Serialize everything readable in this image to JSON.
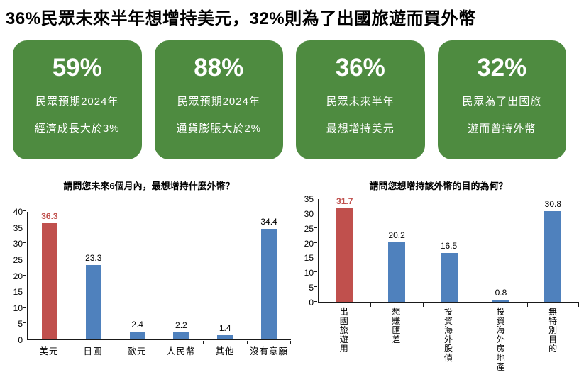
{
  "page_title": "36%民眾未來半年想增持美元，32%則為了出國旅遊而買外幣",
  "cards": [
    {
      "value": "59%",
      "line1": "民眾預期2024年",
      "line2": "經濟成長大於3%"
    },
    {
      "value": "88%",
      "line1": "民眾預期2024年",
      "line2": "通貨膨脹大於2%"
    },
    {
      "value": "36%",
      "line1": "民眾未來半年",
      "line2": "最想增持美元"
    },
    {
      "value": "32%",
      "line1": "民眾為了出國旅",
      "line2": "遊而曾持外幣"
    }
  ],
  "colors": {
    "card_green": "#4e8b40",
    "bar_blue": "#4f81bd",
    "bar_red": "#c0504d",
    "highlight_label_red": "#c0504d"
  },
  "chart_data": [
    {
      "type": "bar",
      "title": "請問您未來6個月內，最想增持什麼外幣？",
      "categories": [
        "美元",
        "日圓",
        "歐元",
        "人民幣",
        "其他",
        "沒有意願"
      ],
      "values": [
        36.3,
        23.3,
        2.4,
        2.2,
        1.4,
        34.4
      ],
      "bar_colors": [
        "#c0504d",
        "#4f81bd",
        "#4f81bd",
        "#4f81bd",
        "#4f81bd",
        "#4f81bd"
      ],
      "label_colors": [
        "#c0504d",
        "#000000",
        "#000000",
        "#000000",
        "#000000",
        "#000000"
      ],
      "ylim": [
        0,
        40
      ],
      "yticks": [
        0,
        5,
        10,
        15,
        20,
        25,
        30,
        35,
        40
      ],
      "grid": false,
      "legend": "none",
      "category_orientation": "horizontal"
    },
    {
      "type": "bar",
      "title": "請問您想增持該外幣的目的為何？",
      "categories": [
        "出國旅遊用",
        "想賺匯差",
        "投資海外股債",
        "投資海外房地產",
        "無特別目的"
      ],
      "values": [
        31.7,
        20.2,
        16.5,
        0.8,
        30.8
      ],
      "bar_colors": [
        "#c0504d",
        "#4f81bd",
        "#4f81bd",
        "#4f81bd",
        "#4f81bd"
      ],
      "label_colors": [
        "#c0504d",
        "#000000",
        "#000000",
        "#000000",
        "#000000"
      ],
      "ylim": [
        0,
        35
      ],
      "yticks": [
        0,
        5,
        10,
        15,
        20,
        25,
        30,
        35
      ],
      "grid": false,
      "legend": "none",
      "category_orientation": "vertical"
    }
  ]
}
